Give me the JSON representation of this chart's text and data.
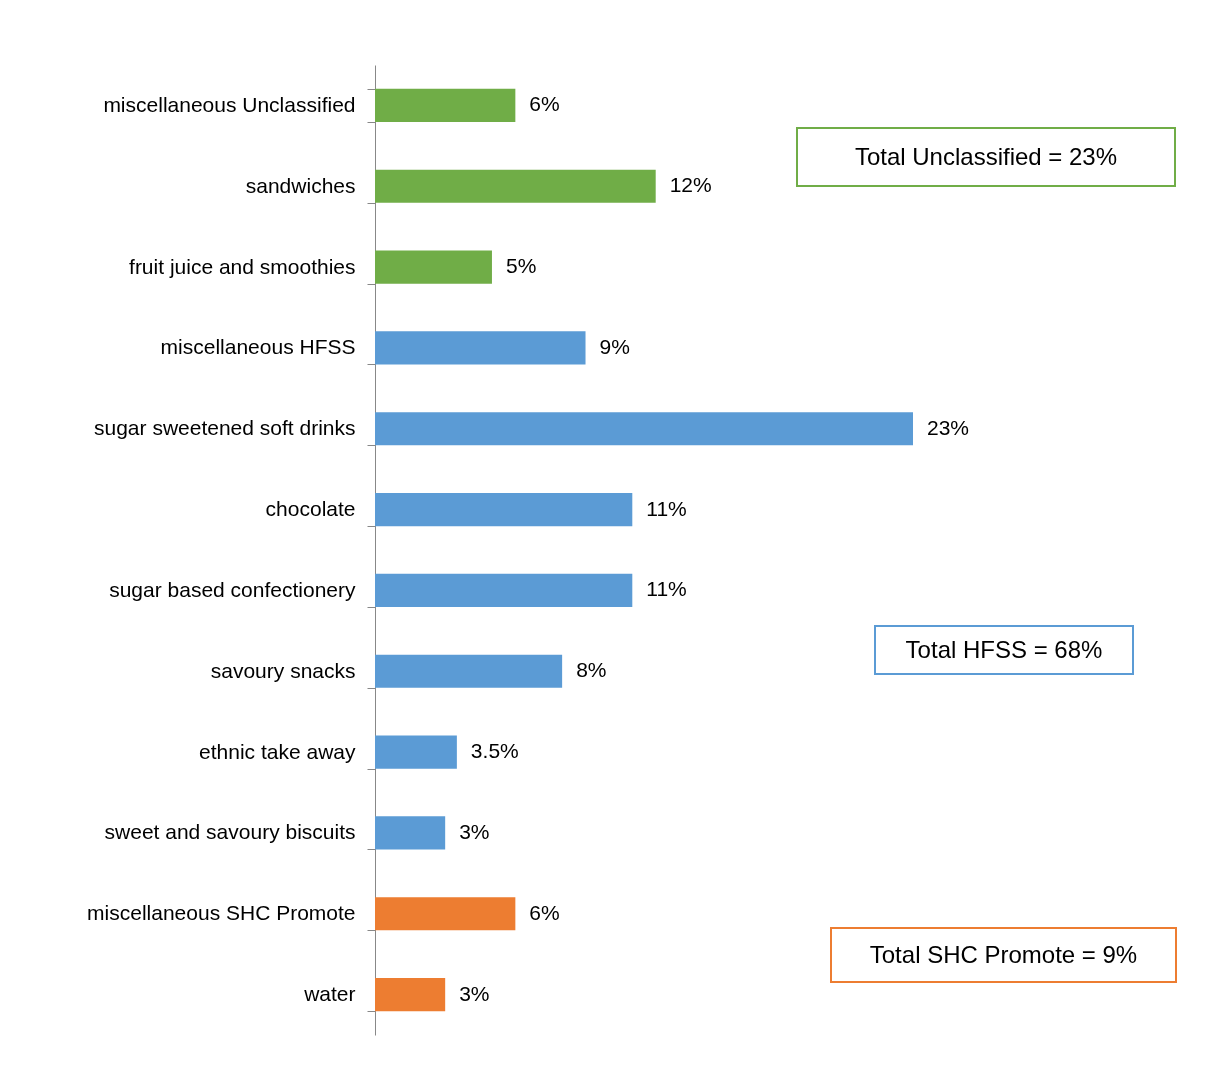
{
  "chart_data": {
    "type": "bar",
    "orientation": "horizontal",
    "categories": [
      "miscellaneous Unclassified",
      "sandwiches",
      "fruit juice and smoothies",
      "miscellaneous HFSS",
      "sugar sweetened soft drinks",
      "chocolate",
      "sugar based confectionery",
      "savoury snacks",
      "ethnic take away",
      "sweet and savoury biscuits",
      "miscellaneous SHC Promote",
      "water"
    ],
    "values": [
      6,
      12,
      5,
      9,
      23,
      11,
      11,
      8,
      3.5,
      3,
      6,
      3
    ],
    "value_labels": [
      "6%",
      "12%",
      "5%",
      "9%",
      "23%",
      "11%",
      "11%",
      "8%",
      "3.5%",
      "3%",
      "6%",
      "3%"
    ],
    "colors": [
      "#70ad47",
      "#70ad47",
      "#70ad47",
      "#5b9bd5",
      "#5b9bd5",
      "#5b9bd5",
      "#5b9bd5",
      "#5b9bd5",
      "#5b9bd5",
      "#5b9bd5",
      "#ed7d31",
      "#ed7d31"
    ],
    "annotations": [
      "Total Unclassified = 23%",
      "Total HFSS = 68%",
      "Total SHC Promote = 9%"
    ]
  }
}
